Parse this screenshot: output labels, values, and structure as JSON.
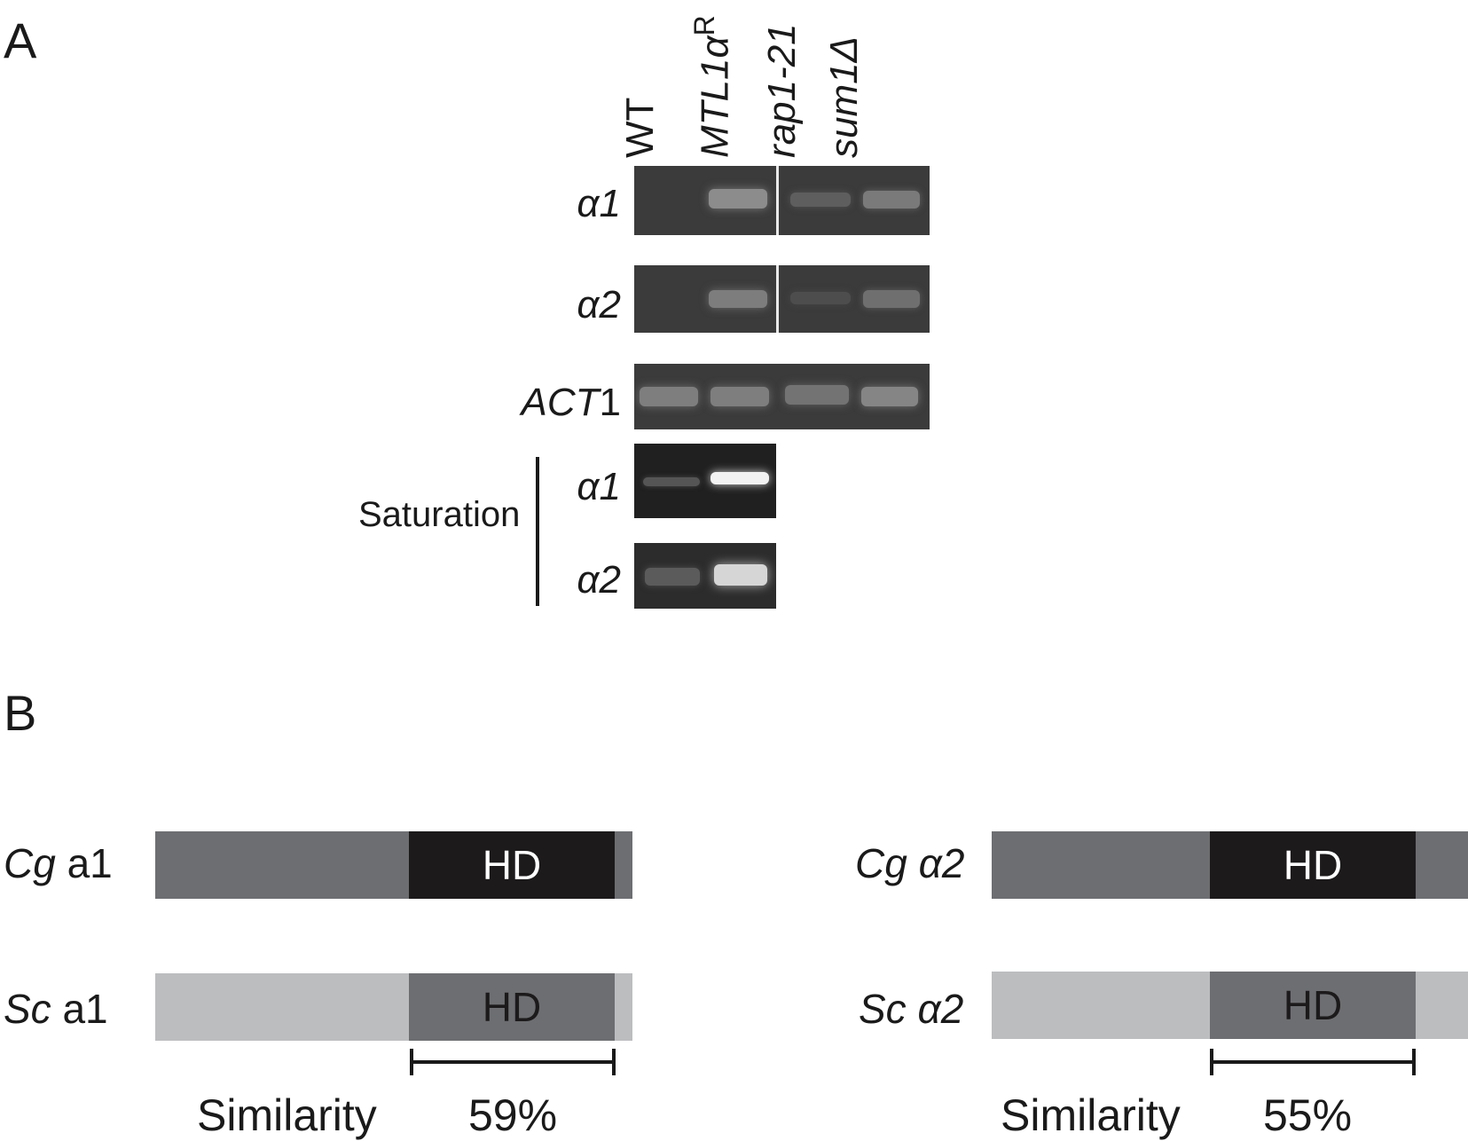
{
  "panelA": {
    "letter": "A",
    "lanes": {
      "wt": "WT",
      "mtl_main": "MTL1",
      "mtl_alpha": "α",
      "mtl_sup": "R",
      "rap1": "rap1-21",
      "sum1": "sum1Δ"
    },
    "rows": {
      "alpha1": "α1",
      "alpha2": "α2",
      "act1_it": "ACT",
      "act1_num": "1",
      "sat_alpha1": "α1",
      "sat_alpha2": "α2"
    },
    "saturation_label": "Saturation"
  },
  "panelB": {
    "letter": "B",
    "left": {
      "cg_species": "Cg",
      "cg_gene": "a1",
      "sc_species": "Sc",
      "sc_gene": "a1",
      "hd_top": "HD",
      "hd_bottom": "HD",
      "similarity_label": "Similarity",
      "similarity_value": "59%"
    },
    "right": {
      "cg_species": "Cg",
      "cg_gene": "α2",
      "sc_species": "Sc",
      "sc_gene": "α2",
      "hd_top": "HD",
      "hd_bottom": "HD",
      "similarity_label": "Similarity",
      "similarity_value": "55%"
    }
  },
  "colors": {
    "gel_bg": "#3b3b3b",
    "cg_bar": "#6d6e71",
    "cg_hd": "#1c1a1b",
    "sc_bar": "#bcbdbf",
    "sc_hd": "#6d6e71"
  }
}
